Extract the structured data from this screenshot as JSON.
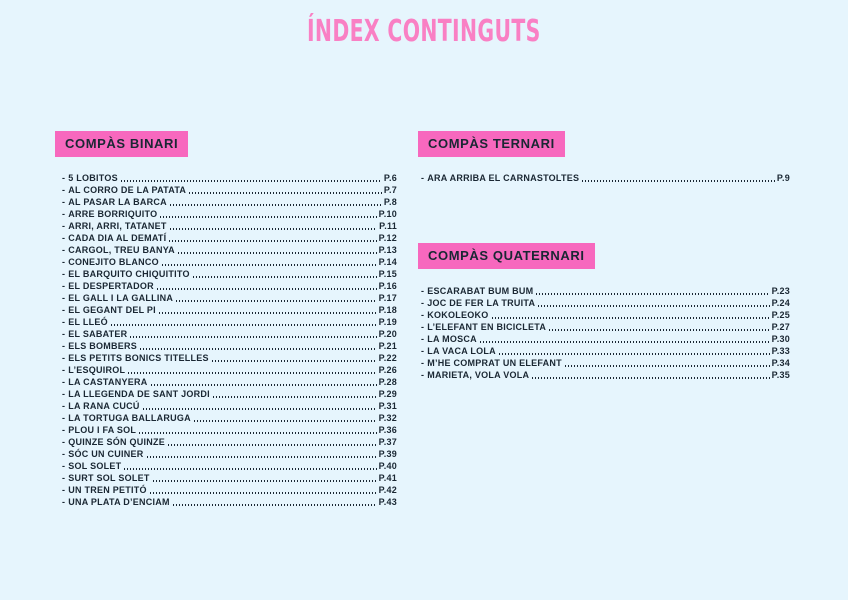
{
  "page": {
    "title": "ÍNDEX CONTINGUTS",
    "list_marker": "-"
  },
  "colors": {
    "background": "#e6f5fd",
    "accent_pink": "#f768be",
    "title_pink": "#f980c4",
    "text_dark": "#1a2733"
  },
  "sections": {
    "binari": {
      "label": "COMPÀS BINARI",
      "entries": [
        {
          "title": "5 LOBITOS",
          "page": "P.6"
        },
        {
          "title": "AL CORRO DE LA PATATA",
          "page": "P.7"
        },
        {
          "title": "AL PASAR LA BARCA",
          "page": "P.8"
        },
        {
          "title": "ARRE BORRIQUITO",
          "page": "P.10"
        },
        {
          "title": "ARRI, ARRI, TATANET",
          "page": "P.11"
        },
        {
          "title": "CADA DIA AL DEMATÍ",
          "page": "P.12"
        },
        {
          "title": "CARGOL, TREU BANYA",
          "page": "P.13"
        },
        {
          "title": "CONEJITO BLANCO",
          "page": "P.14"
        },
        {
          "title": "EL BARQUITO CHIQUITITO",
          "page": "P.15"
        },
        {
          "title": "EL DESPERTADOR",
          "page": "P.16"
        },
        {
          "title": "EL GALL I LA GALLINA",
          "page": "P.17"
        },
        {
          "title": "EL GEGANT DEL PI",
          "page": "P.18"
        },
        {
          "title": "EL LLEÓ",
          "page": "P.19"
        },
        {
          "title": "EL SABATER",
          "page": "P.20"
        },
        {
          "title": "ELS BOMBERS",
          "page": "P.21"
        },
        {
          "title": "ELS PETITS BONICS TITELLES",
          "page": "P.22"
        },
        {
          "title": "L’ESQUIROL",
          "page": "P.26"
        },
        {
          "title": "LA CASTANYERA",
          "page": "P.28"
        },
        {
          "title": "LA LLEGENDA DE SANT JORDI",
          "page": "P.29"
        },
        {
          "title": "LA RANA CUCÚ",
          "page": "P.31"
        },
        {
          "title": "LA TORTUGA BALLARUGA",
          "page": "P.32"
        },
        {
          "title": "PLOU I FA SOL",
          "page": "P.36"
        },
        {
          "title": "QUINZE SÓN QUINZE",
          "page": "P.37"
        },
        {
          "title": "SÓC UN CUINER",
          "page": "P.39"
        },
        {
          "title": "SOL SOLET",
          "page": "P.40"
        },
        {
          "title": "SURT SOL SOLET",
          "page": "P.41"
        },
        {
          "title": "UN TREN PETITÓ",
          "page": "P.42"
        },
        {
          "title": "UNA PLATA D’ENCIAM",
          "page": "P.43"
        }
      ]
    },
    "ternari": {
      "label": "COMPÀS TERNARI",
      "entries": [
        {
          "title": "ARA ARRIBA EL CARNASTOLTES",
          "page": "P.9"
        }
      ]
    },
    "quaternari": {
      "label": "COMPÀS QUATERNARI",
      "entries": [
        {
          "title": "ESCARABAT BUM BUM",
          "page": "P.23"
        },
        {
          "title": "JOC DE FER LA TRUITA",
          "page": "P.24"
        },
        {
          "title": "KOKOLEOKO",
          "page": "P.25"
        },
        {
          "title": "L’ELEFANT EN BICICLETA",
          "page": "P.27"
        },
        {
          "title": "LA MOSCA",
          "page": "P.30"
        },
        {
          "title": "LA VACA LOLA",
          "page": "P.33"
        },
        {
          "title": "M’HE COMPRAT UN ELEFANT",
          "page": "P.34"
        },
        {
          "title": "MARIETA, VOLA VOLA",
          "page": "P.35"
        }
      ]
    }
  }
}
